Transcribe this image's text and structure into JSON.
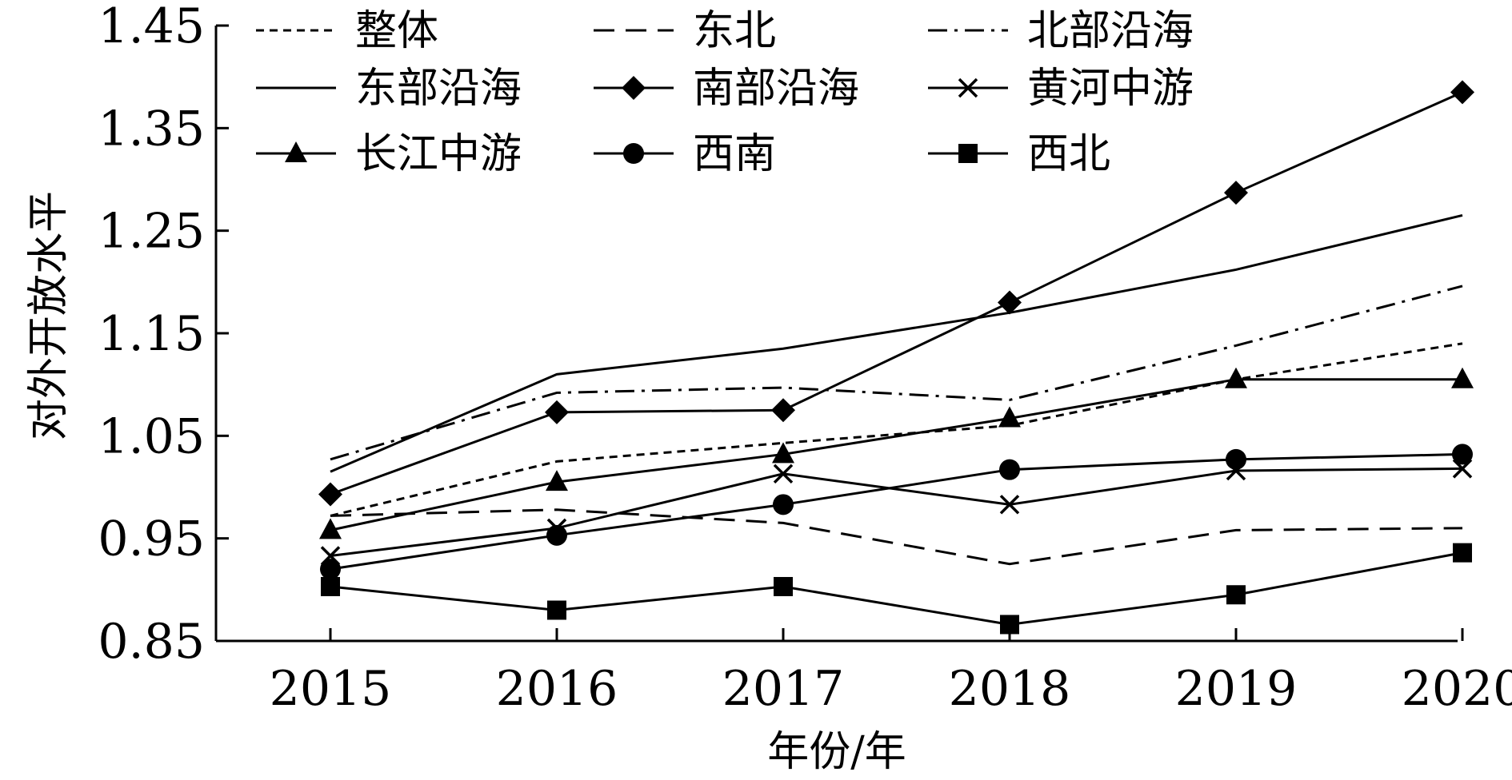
{
  "chart_data": {
    "type": "line",
    "title": "",
    "xlabel": "年份/年",
    "ylabel": "对外开放水平",
    "categories": [
      "2015",
      "2016",
      "2017",
      "2018",
      "2019",
      "2020"
    ],
    "ylim": [
      0.85,
      1.45
    ],
    "yticks": [
      "0.85",
      "0.95",
      "1.05",
      "1.15",
      "1.25",
      "1.35",
      "1.45"
    ],
    "grid": false,
    "legend_position": "top",
    "series": [
      {
        "name": "整体",
        "values": [
          0.972,
          1.025,
          1.043,
          1.06,
          1.105,
          1.14
        ],
        "dash": "short-dash",
        "marker": "none"
      },
      {
        "name": "东北",
        "values": [
          0.972,
          0.978,
          0.965,
          0.925,
          0.958,
          0.96
        ],
        "dash": "long-dash",
        "marker": "none"
      },
      {
        "name": "北部沿海",
        "values": [
          1.027,
          1.092,
          1.097,
          1.085,
          1.138,
          1.196
        ],
        "dash": "dash-dot",
        "marker": "none"
      },
      {
        "name": "东部沿海",
        "values": [
          1.015,
          1.11,
          1.135,
          1.17,
          1.212,
          1.265
        ],
        "dash": "solid",
        "marker": "none"
      },
      {
        "name": "南部沿海",
        "values": [
          0.993,
          1.073,
          1.075,
          1.18,
          1.287,
          1.385
        ],
        "dash": "solid",
        "marker": "diamond"
      },
      {
        "name": "黄河中游",
        "values": [
          0.933,
          0.96,
          1.013,
          0.983,
          1.016,
          1.018
        ],
        "dash": "solid",
        "marker": "cross"
      },
      {
        "name": "长江中游",
        "values": [
          0.958,
          1.005,
          1.032,
          1.067,
          1.105,
          1.105
        ],
        "dash": "solid",
        "marker": "triangle"
      },
      {
        "name": "西南",
        "values": [
          0.92,
          0.953,
          0.983,
          1.017,
          1.027,
          1.032
        ],
        "dash": "solid",
        "marker": "circle"
      },
      {
        "name": "西北",
        "values": [
          0.903,
          0.88,
          0.903,
          0.866,
          0.895,
          0.936
        ],
        "dash": "solid",
        "marker": "square"
      }
    ]
  }
}
